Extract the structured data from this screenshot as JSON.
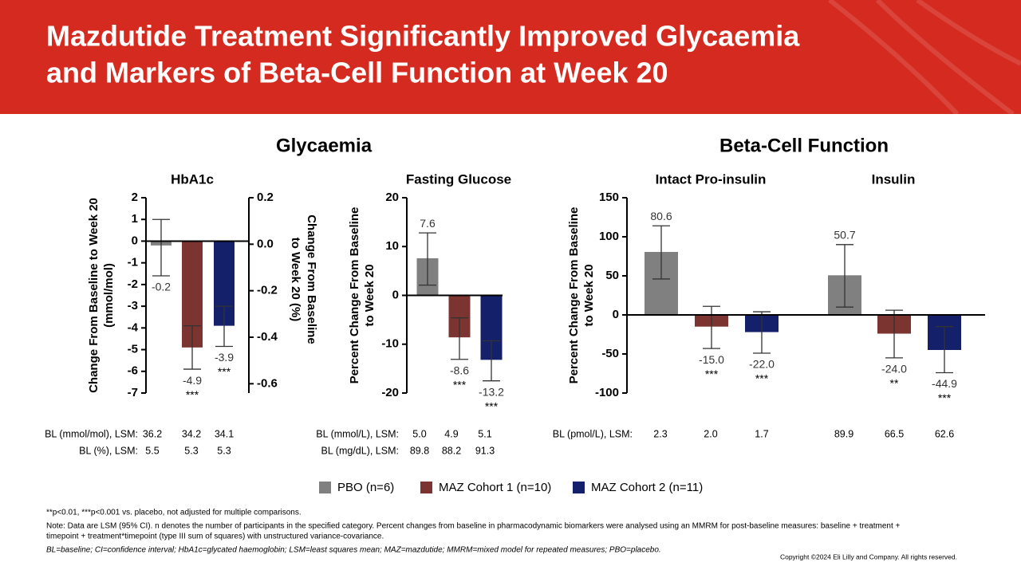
{
  "header": {
    "title_lines": [
      "Mazdutide Treatment Significantly Improved Glycaemia",
      "and Markers of Beta-Cell Function at Week 20"
    ]
  },
  "sections": [
    "Glycaemia",
    "Beta-Cell Function"
  ],
  "legend": [
    {
      "name": "PBO (n=6)",
      "color": "#808080"
    },
    {
      "name": "MAZ Cohort 1 (n=10)",
      "color": "#7b3430"
    },
    {
      "name": "MAZ Cohort 2 (n=11)",
      "color": "#15206a"
    }
  ],
  "chart_data": [
    {
      "type": "bar",
      "title": "HbA1c",
      "ylabel": [
        "Change From Baseline to Week 20",
        "(mmol/mol)"
      ],
      "y2label": [
        "Change From Baseline",
        "to Week 20 (%)"
      ],
      "ylim": [
        -7,
        2
      ],
      "yticks": [
        -7,
        -6,
        -5,
        -4,
        -3,
        -2,
        -1,
        0,
        1,
        2
      ],
      "y2lim": [
        -0.64,
        0.2
      ],
      "y2ticks": [
        -0.6,
        -0.4,
        -0.2,
        {
          "value": 0,
          "label": "0.0"
        },
        0.2
      ],
      "values": [
        -0.2,
        -4.9,
        -3.9
      ],
      "value_labels": [
        "-0.2",
        "-4.9",
        "-3.9"
      ],
      "ci_low": [
        -1.6,
        -5.9,
        -4.85
      ],
      "ci_high": [
        1.0,
        -3.9,
        -3.0
      ],
      "significance": [
        null,
        "***",
        "***"
      ]
    },
    {
      "type": "bar",
      "title": "Fasting Glucose",
      "ylabel": [
        "Percent Change From Baseline",
        "to Week 20"
      ],
      "ylim": [
        -20,
        20
      ],
      "yticks": [
        -20,
        -10,
        0,
        10,
        20
      ],
      "values": [
        7.6,
        -8.6,
        -13.2
      ],
      "value_labels": [
        "7.6",
        "-8.6",
        "-13.2"
      ],
      "ci_low": [
        2.1,
        -13.1,
        -17.5
      ],
      "ci_high": [
        12.8,
        -4.6,
        -9.3
      ],
      "significance": [
        null,
        "***",
        "***"
      ]
    },
    {
      "type": "bar",
      "title": "Intact Pro-insulin",
      "ylabel": [
        "Percent Change From Baseline",
        "to Week 20"
      ],
      "ylim": [
        -100,
        150
      ],
      "yticks": [
        -100,
        -50,
        0,
        50,
        100,
        150
      ],
      "values": [
        80.6,
        -15.0,
        -22.0
      ],
      "value_labels": [
        "80.6",
        "-15.0",
        "-22.0"
      ],
      "ci_low": [
        46,
        -43,
        -49
      ],
      "ci_high": [
        114,
        11,
        4
      ],
      "significance": [
        null,
        "***",
        "***"
      ]
    },
    {
      "type": "bar",
      "title": "Insulin",
      "ylim": [
        -100,
        150
      ],
      "values": [
        50.7,
        -24.0,
        -44.9
      ],
      "value_labels": [
        "50.7",
        "-24.0",
        "-44.9"
      ],
      "ci_low": [
        10,
        -55,
        -74
      ],
      "ci_high": [
        90,
        6,
        -15
      ],
      "significance": [
        null,
        "**",
        "***"
      ]
    }
  ],
  "baseline": [
    [
      {
        "label": "BL (mmol/mol), LSM:",
        "values": [
          "36.2",
          "34.2",
          "34.1"
        ]
      },
      {
        "label": "BL (%), LSM:",
        "values": [
          "5.5",
          "5.3",
          "5.3"
        ]
      }
    ],
    [
      {
        "label": "BL (mmol/L), LSM:",
        "values": [
          "5.0",
          "4.9",
          "5.1"
        ]
      },
      {
        "label": "BL (mg/dL), LSM:",
        "values": [
          "89.8",
          "88.2",
          "91.3"
        ]
      }
    ],
    [
      {
        "label": "BL (pmol/L), LSM:",
        "values": [
          "2.3",
          "2.0",
          "1.7",
          "89.9",
          "66.5",
          "62.6"
        ]
      }
    ]
  ],
  "footnotes": [
    "**p<0.01, ***p<0.001 vs. placebo, not adjusted for multiple comparisons.",
    "Note: Data are LSM (95% CI). n denotes the number of participants in the specified category. Percent changes from baseline in pharmacodynamic biomarkers were analysed using an MMRM for post-baseline measures: baseline + treatment +",
    "timepoint + treatment*timepoint (type III sum of squares) with unstructured variance-covariance.",
    "BL=baseline; CI=confidence interval; HbA1c=glycated haemoglobin; LSM=least squares mean; MAZ=mazdutide; MMRM=mixed model for repeated measures; PBO=placebo."
  ],
  "copyright": "Copyright ©2024 Eli Lilly and Company. All rights reserved."
}
